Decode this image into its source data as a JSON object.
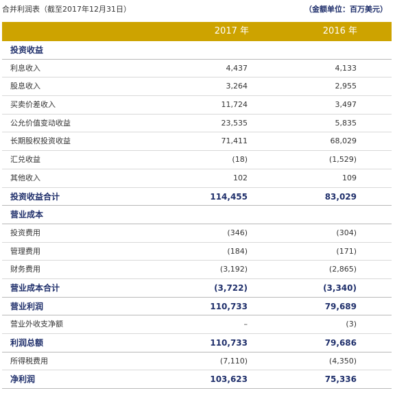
{
  "header": {
    "title": "合并利润表（截至2017年12月31日）",
    "unit": "（金额单位：百万美元）"
  },
  "columns": {
    "y2017": "2017 年",
    "y2016": "2016 年"
  },
  "rows": [
    {
      "label": "投资收益",
      "v2017": "",
      "v2016": "",
      "type": "section"
    },
    {
      "label": "利息收入",
      "v2017": "4,437",
      "v2016": "4,133",
      "type": "item"
    },
    {
      "label": "股息收入",
      "v2017": "3,264",
      "v2016": "2,955",
      "type": "item"
    },
    {
      "label": "买卖价差收入",
      "v2017": "11,724",
      "v2016": "3,497",
      "type": "item"
    },
    {
      "label": "公允价值变动收益",
      "v2017": "23,535",
      "v2016": "5,835",
      "type": "item"
    },
    {
      "label": "长期股权投资收益",
      "v2017": "71,411",
      "v2016": "68,029",
      "type": "item"
    },
    {
      "label": "汇兑收益",
      "v2017": "(18)",
      "v2016": "(1,529)",
      "type": "item"
    },
    {
      "label": "其他收入",
      "v2017": "102",
      "v2016": "109",
      "type": "item"
    },
    {
      "label": "投资收益合计",
      "v2017": "114,455",
      "v2016": "83,029",
      "type": "total"
    },
    {
      "label": "营业成本",
      "v2017": "",
      "v2016": "",
      "type": "section"
    },
    {
      "label": "投资费用",
      "v2017": "(346)",
      "v2016": "(304)",
      "type": "item"
    },
    {
      "label": "管理费用",
      "v2017": "(184)",
      "v2016": "(171)",
      "type": "item"
    },
    {
      "label": "财务费用",
      "v2017": "(3,192)",
      "v2016": "(2,865)",
      "type": "item"
    },
    {
      "label": "营业成本合计",
      "v2017": "(3,722)",
      "v2016": "(3,340)",
      "type": "total"
    },
    {
      "label": "营业利润",
      "v2017": "110,733",
      "v2016": "79,689",
      "type": "total"
    },
    {
      "label": "营业外收支净额",
      "v2017": "–",
      "v2016": "(3)",
      "type": "item"
    },
    {
      "label": "利润总额",
      "v2017": "110,733",
      "v2016": "79,686",
      "type": "total"
    },
    {
      "label": "所得税费用",
      "v2017": "(7,110)",
      "v2016": "(4,350)",
      "type": "item"
    },
    {
      "label": "净利润",
      "v2017": "103,623",
      "v2016": "75,336",
      "type": "total"
    }
  ]
}
